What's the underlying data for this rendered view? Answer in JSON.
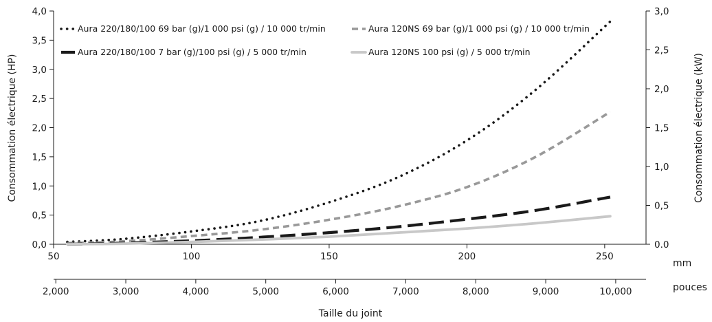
{
  "chart_data": {
    "type": "line",
    "xlabel": "Taille du joint",
    "ylabel": "Consommation électrique (HP)",
    "y2label": "Consommation électrique (kW)",
    "x_unit_primary": "mm",
    "x_unit_secondary": "pouces",
    "xlim": [
      50,
      265
    ],
    "ylim": [
      0,
      4
    ],
    "y2lim": [
      0,
      3
    ],
    "x_ticks": [
      "50",
      "100",
      "150",
      "200",
      "250"
    ],
    "x_tick_values": [
      50,
      100,
      150,
      200,
      250
    ],
    "x2_ticks": [
      "2,000",
      "3,000",
      "4,000",
      "5,000",
      "6,000",
      "7,000",
      "8,000",
      "9,000",
      "10,000"
    ],
    "x2_tick_values": [
      50.8,
      76.2,
      101.6,
      127.0,
      152.4,
      177.8,
      203.2,
      228.6,
      254.0
    ],
    "y_ticks": [
      "0,0",
      "0,5",
      "1,0",
      "1,5",
      "2,0",
      "2,5",
      "3,0",
      "3,5",
      "4,0"
    ],
    "y_tick_values": [
      0,
      0.5,
      1,
      1.5,
      2,
      2.5,
      3,
      3.5,
      4
    ],
    "y2_ticks": [
      "0.0",
      "0,5",
      "1,0",
      "1,5",
      "2,0",
      "2,5",
      "3,0"
    ],
    "y2_tick_values": [
      0,
      0.5,
      1,
      1.5,
      2,
      2.5,
      3
    ],
    "grid": false,
    "legend_position": "top-left",
    "series": [
      {
        "name": "Aura 220/180/100 69 bar (g)/1 000 psi (g) / 10 000 tr/min",
        "style": "dotted",
        "color": "#1a1a1a",
        "x": [
          55,
          75,
          100,
          125,
          150,
          175,
          200,
          225,
          252
        ],
        "y": [
          0.04,
          0.09,
          0.22,
          0.4,
          0.72,
          1.15,
          1.78,
          2.65,
          3.82
        ]
      },
      {
        "name": "Aura 120NS 69 bar (g)/1 000 psi (g) / 10 000 tr/min",
        "style": "dashed",
        "color": "#999999",
        "x": [
          55,
          75,
          100,
          125,
          150,
          175,
          200,
          225,
          252
        ],
        "y": [
          0.02,
          0.05,
          0.14,
          0.25,
          0.42,
          0.65,
          0.98,
          1.5,
          2.27
        ]
      },
      {
        "name": "Aura 220/180/100 7 bar (g)/100 psi (g) / 5 000 tr/min",
        "style": "dashed-bold",
        "color": "#1a1a1a",
        "x": [
          55,
          75,
          100,
          125,
          150,
          175,
          200,
          225,
          252
        ],
        "y": [
          0.0,
          0.02,
          0.06,
          0.12,
          0.2,
          0.3,
          0.43,
          0.58,
          0.81
        ]
      },
      {
        "name": "Aura 120NS 100 psi (g) / 5 000 tr/min",
        "style": "solid",
        "color": "#c8c8c8",
        "x": [
          55,
          75,
          100,
          125,
          150,
          175,
          200,
          225,
          252
        ],
        "y": [
          0.0,
          0.01,
          0.04,
          0.08,
          0.13,
          0.2,
          0.27,
          0.36,
          0.48
        ]
      }
    ]
  }
}
